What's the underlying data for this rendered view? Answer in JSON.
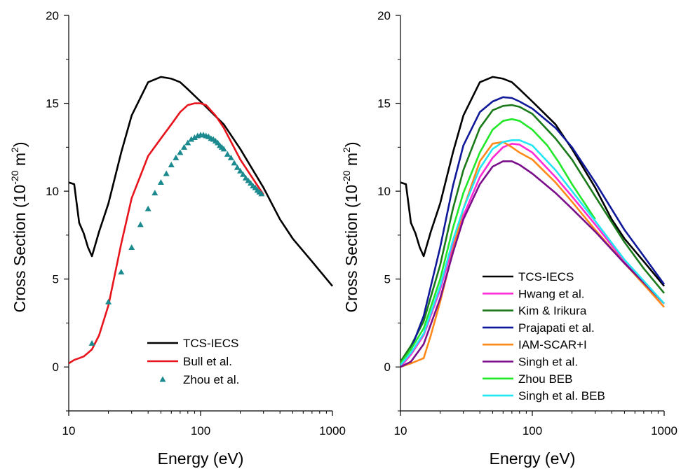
{
  "chart_data": [
    {
      "type": "line",
      "xlabel": "Energy (eV)",
      "ylabel": {
        "main": "Cross Section (10",
        "exp": "-20",
        "unit": " m",
        "unit_exp": "2",
        "close": ")"
      },
      "xscale": "log",
      "xlim": [
        10,
        1000
      ],
      "ylim": [
        -2.5,
        20
      ],
      "xticks": [
        {
          "v": 10,
          "label": "10"
        },
        {
          "v": 100,
          "label": "100"
        },
        {
          "v": 1000,
          "label": "1000"
        }
      ],
      "yticks": [
        {
          "v": 0,
          "label": "0"
        },
        {
          "v": 5,
          "label": "5"
        },
        {
          "v": 10,
          "label": "10"
        },
        {
          "v": 15,
          "label": "15"
        },
        {
          "v": 20,
          "label": "20"
        }
      ],
      "legend_position": "lower-right",
      "series": [
        {
          "name": "TCS-IECS",
          "color": "#000000",
          "style": "line",
          "x": [
            10,
            11,
            12,
            13,
            14,
            15,
            17,
            20,
            25,
            30,
            40,
            50,
            60,
            70,
            80,
            100,
            150,
            200,
            300,
            400,
            500,
            700,
            1000
          ],
          "y": [
            10.5,
            10.4,
            8.2,
            7.6,
            6.8,
            6.3,
            7.7,
            9.3,
            12.2,
            14.3,
            16.2,
            16.5,
            16.4,
            16.2,
            15.8,
            15.1,
            13.8,
            12.4,
            10.2,
            8.4,
            7.3,
            6.0,
            4.6
          ]
        },
        {
          "name": "Bull et al.",
          "color": "#e8141c",
          "style": "line",
          "x": [
            10,
            11,
            12,
            13,
            14,
            15,
            17,
            20,
            25,
            30,
            40,
            50,
            60,
            70,
            80,
            90,
            100,
            110,
            130,
            150,
            200,
            250,
            300
          ],
          "y": [
            0.2,
            0.4,
            0.5,
            0.6,
            0.8,
            1.0,
            1.8,
            3.5,
            7.0,
            9.6,
            12.0,
            13.0,
            13.8,
            14.5,
            14.9,
            15.0,
            15.0,
            14.9,
            14.3,
            13.6,
            11.8,
            10.7,
            9.8
          ]
        },
        {
          "name": "Zhou et al.",
          "color": "#1a8a8f",
          "style": "marker",
          "x": [
            15,
            20,
            25,
            30,
            35,
            40,
            45,
            50,
            55,
            60,
            65,
            70,
            75,
            80,
            85,
            90,
            95,
            100,
            105,
            110,
            115,
            120,
            125,
            130,
            135,
            140,
            145,
            150,
            160,
            170,
            180,
            190,
            200,
            210,
            220,
            230,
            240,
            250,
            260,
            270,
            280,
            290
          ],
          "y": [
            1.35,
            3.7,
            5.4,
            6.8,
            8.1,
            9.0,
            9.9,
            10.5,
            11.0,
            11.5,
            11.9,
            12.2,
            12.5,
            12.75,
            12.95,
            13.05,
            13.15,
            13.2,
            13.2,
            13.15,
            13.1,
            13.0,
            12.95,
            12.85,
            12.75,
            12.6,
            12.5,
            12.4,
            12.1,
            11.9,
            11.6,
            11.35,
            11.15,
            10.95,
            10.75,
            10.6,
            10.45,
            10.3,
            10.2,
            10.05,
            9.95,
            9.85
          ]
        }
      ]
    },
    {
      "type": "line",
      "xlabel": "Energy (eV)",
      "ylabel": {
        "main": "Cross Section (10",
        "exp": "-20",
        "unit": " m",
        "unit_exp": "2",
        "close": ")"
      },
      "xscale": "log",
      "xlim": [
        10,
        1000
      ],
      "ylim": [
        -2.5,
        20
      ],
      "xticks": [
        {
          "v": 10,
          "label": "10"
        },
        {
          "v": 100,
          "label": "100"
        },
        {
          "v": 1000,
          "label": "1000"
        }
      ],
      "yticks": [
        {
          "v": 0,
          "label": "0"
        },
        {
          "v": 5,
          "label": "5"
        },
        {
          "v": 10,
          "label": "10"
        },
        {
          "v": 15,
          "label": "15"
        },
        {
          "v": 20,
          "label": "20"
        }
      ],
      "legend_position": "lower-right",
      "series": [
        {
          "name": "TCS-IECS",
          "color": "#000000",
          "style": "line",
          "x": [
            10,
            11,
            12,
            13,
            14,
            15,
            17,
            20,
            25,
            30,
            40,
            50,
            60,
            70,
            80,
            100,
            150,
            200,
            300,
            400,
            500,
            700,
            1000
          ],
          "y": [
            10.5,
            10.4,
            8.2,
            7.6,
            6.8,
            6.3,
            7.7,
            9.3,
            12.2,
            14.3,
            16.2,
            16.5,
            16.4,
            16.2,
            15.8,
            15.1,
            13.8,
            12.4,
            10.2,
            8.4,
            7.3,
            6.0,
            4.6
          ]
        },
        {
          "name": "Hwang et al.",
          "color": "#ff2bd6",
          "style": "line",
          "x": [
            10,
            12,
            15,
            20,
            25,
            30,
            40,
            50,
            60,
            70,
            80,
            100,
            150,
            200,
            300,
            500,
            700,
            1000
          ],
          "y": [
            0.0,
            0.7,
            1.8,
            4.4,
            6.9,
            8.6,
            10.8,
            11.9,
            12.5,
            12.7,
            12.65,
            12.2,
            10.8,
            9.7,
            8.1,
            6.0,
            4.8,
            3.6
          ]
        },
        {
          "name": "Kim & Irikura",
          "color": "#1a7a1a",
          "style": "line",
          "x": [
            10,
            12,
            15,
            20,
            25,
            30,
            40,
            50,
            60,
            70,
            80,
            100,
            150,
            200,
            300,
            500,
            700,
            1000
          ],
          "y": [
            0.3,
            1.2,
            2.6,
            5.8,
            9.0,
            11.2,
            13.6,
            14.6,
            14.85,
            14.9,
            14.8,
            14.4,
            13.0,
            11.8,
            9.7,
            7.1,
            5.6,
            4.2
          ]
        },
        {
          "name": "Prajapati et al.",
          "color": "#10189a",
          "style": "line",
          "x": [
            10,
            12,
            15,
            20,
            25,
            30,
            40,
            50,
            60,
            70,
            80,
            100,
            150,
            200,
            300,
            500,
            700,
            1000
          ],
          "y": [
            0.2,
            1.0,
            2.9,
            6.8,
            10.3,
            12.6,
            14.5,
            15.1,
            15.35,
            15.3,
            15.1,
            14.7,
            13.6,
            12.5,
            10.5,
            7.8,
            6.3,
            4.7
          ]
        },
        {
          "name": "IAM-SCAR+I",
          "color": "#ff8a1a",
          "style": "line",
          "x": [
            10,
            12,
            15,
            17,
            20,
            25,
            30,
            40,
            50,
            60,
            70,
            80,
            100,
            150,
            200,
            300,
            500,
            700,
            1000
          ],
          "y": [
            0.0,
            0.2,
            0.5,
            1.8,
            3.7,
            6.6,
            9.0,
            11.7,
            12.7,
            12.8,
            12.5,
            12.2,
            11.8,
            10.5,
            9.4,
            7.8,
            5.9,
            4.7,
            3.4
          ]
        },
        {
          "name": "Singh et al.",
          "color": "#7a0e8a",
          "style": "line",
          "x": [
            10,
            12,
            15,
            20,
            25,
            30,
            40,
            50,
            60,
            70,
            80,
            100,
            150,
            200,
            300,
            500,
            700,
            1000
          ],
          "y": [
            0.0,
            0.3,
            1.3,
            3.9,
            6.5,
            8.4,
            10.4,
            11.4,
            11.7,
            11.7,
            11.5,
            11.0,
            9.9,
            9.0,
            7.7,
            5.9,
            4.8,
            3.6
          ]
        },
        {
          "name": "Zhou BEB",
          "color": "#22e82a",
          "style": "line",
          "x": [
            10,
            12,
            15,
            20,
            25,
            30,
            40,
            50,
            60,
            70,
            80,
            100,
            130,
            160,
            200,
            250,
            300
          ],
          "y": [
            0.2,
            1.0,
            2.2,
            5.0,
            7.9,
            9.9,
            12.2,
            13.5,
            14.0,
            14.1,
            14.0,
            13.5,
            12.6,
            11.6,
            10.4,
            9.3,
            8.4
          ]
        },
        {
          "name": "Singh et al. BEB",
          "color": "#22e6f4",
          "style": "line",
          "x": [
            10,
            12,
            15,
            20,
            25,
            30,
            40,
            50,
            60,
            70,
            80,
            100,
            150,
            200,
            300,
            500,
            700,
            1000
          ],
          "y": [
            0.1,
            0.8,
            1.9,
            4.6,
            7.2,
            9.0,
            11.3,
            12.4,
            12.8,
            12.9,
            12.9,
            12.6,
            11.2,
            10.0,
            8.3,
            6.1,
            4.9,
            3.6
          ]
        }
      ]
    }
  ]
}
